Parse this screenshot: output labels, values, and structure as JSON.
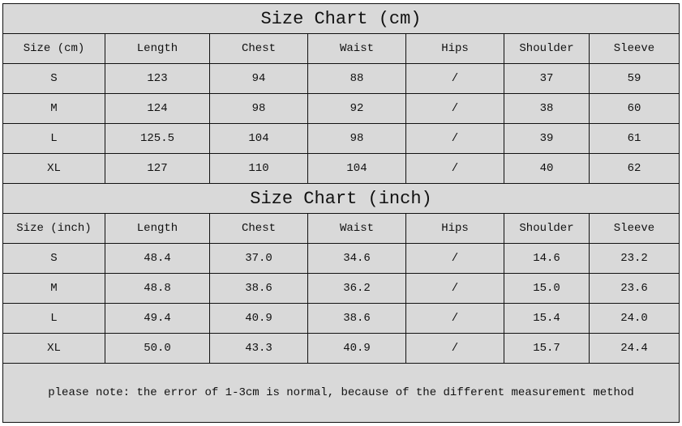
{
  "colors": {
    "cell_background": "#d9d9d9",
    "border": "#111111"
  },
  "cm_table": {
    "title": "Size Chart (cm)",
    "headers": [
      "Size (cm)",
      "Length",
      "Chest",
      "Waist",
      "Hips",
      "Shoulder",
      "Sleeve"
    ],
    "rows": [
      [
        "S",
        "123",
        "94",
        "88",
        "/",
        "37",
        "59"
      ],
      [
        "M",
        "124",
        "98",
        "92",
        "/",
        "38",
        "60"
      ],
      [
        "L",
        "125.5",
        "104",
        "98",
        "/",
        "39",
        "61"
      ],
      [
        "XL",
        "127",
        "110",
        "104",
        "/",
        "40",
        "62"
      ]
    ]
  },
  "inch_table": {
    "title": "Size Chart (inch)",
    "headers": [
      "Size (inch)",
      "Length",
      "Chest",
      "Waist",
      "Hips",
      "Shoulder",
      "Sleeve"
    ],
    "rows": [
      [
        "S",
        "48.4",
        "37.0",
        "34.6",
        "/",
        "14.6",
        "23.2"
      ],
      [
        "M",
        "48.8",
        "38.6",
        "36.2",
        "/",
        "15.0",
        "23.6"
      ],
      [
        "L",
        "49.4",
        "40.9",
        "38.6",
        "/",
        "15.4",
        "24.0"
      ],
      [
        "XL",
        "50.0",
        "43.3",
        "40.9",
        "/",
        "15.7",
        "24.4"
      ]
    ]
  },
  "note": "please note: the error of 1-3cm is normal, because of the different measurement method"
}
